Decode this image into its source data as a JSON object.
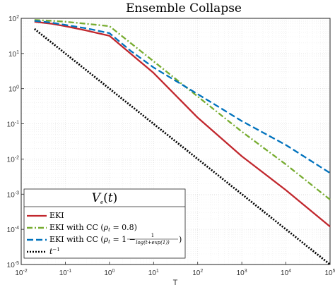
{
  "chart_data": {
    "type": "line",
    "title": "Ensemble Collapse",
    "xlabel": "T",
    "ylabel": "",
    "xscale": "log",
    "yscale": "log",
    "xlim": [
      0.01,
      100000
    ],
    "ylim": [
      1e-05,
      100
    ],
    "grid": true,
    "x_ticks": [
      {
        "base": "10",
        "exp": "-2"
      },
      {
        "base": "10",
        "exp": "-1"
      },
      {
        "base": "10",
        "exp": "0"
      },
      {
        "base": "10",
        "exp": "1"
      },
      {
        "base": "10",
        "exp": "2"
      },
      {
        "base": "10",
        "exp": "3"
      },
      {
        "base": "10",
        "exp": "4"
      },
      {
        "base": "10",
        "exp": "5"
      }
    ],
    "y_ticks": [
      {
        "base": "10",
        "exp": "2"
      },
      {
        "base": "10",
        "exp": "1"
      },
      {
        "base": "10",
        "exp": "0"
      },
      {
        "base": "10",
        "exp": "-1"
      },
      {
        "base": "10",
        "exp": "-2"
      },
      {
        "base": "10",
        "exp": "-3"
      },
      {
        "base": "10",
        "exp": "-4"
      },
      {
        "base": "10",
        "exp": "-5"
      }
    ],
    "legend": {
      "title": "V_e(t)",
      "position": "bottom-left",
      "entries": [
        {
          "label": "EKI"
        },
        {
          "label": "EKI with CC (ρ_t = 0.8)"
        },
        {
          "label": "EKI with CC (ρ_t = 1 − 1/(log(t+exp(1))))"
        },
        {
          "label": "t^-1"
        }
      ]
    },
    "series": [
      {
        "name": "EKI",
        "color": "#c1272d",
        "dash": "solid",
        "x": [
          0.02,
          0.05,
          0.1,
          0.3,
          1,
          3,
          10,
          100,
          1000,
          10000,
          100000
        ],
        "y": [
          80,
          70,
          60,
          45,
          32,
          10,
          2.8,
          0.15,
          0.012,
          0.0013,
          0.00012
        ]
      },
      {
        "name": "EKI with CC (ρ_t = 0.8)",
        "color": "#77ac30",
        "dash": "dashdot",
        "x": [
          0.02,
          0.05,
          0.1,
          0.3,
          1,
          3,
          10,
          100,
          1000,
          10000,
          100000
        ],
        "y": [
          90,
          85,
          80,
          70,
          60,
          20,
          6,
          0.6,
          0.06,
          0.007,
          0.0007
        ]
      },
      {
        "name": "EKI with CC (ρ_t = 1 − 1/(log(t+exp(1))))",
        "color": "#0072bd",
        "dash": "dashed",
        "x": [
          0.02,
          0.05,
          0.1,
          0.3,
          1,
          3,
          10,
          100,
          1000,
          10000,
          100000
        ],
        "y": [
          85,
          75,
          65,
          52,
          38,
          12,
          4,
          0.7,
          0.12,
          0.025,
          0.004
        ]
      },
      {
        "name": "t^-1",
        "color": "#000000",
        "dash": "dotted",
        "x": [
          0.02,
          100000
        ],
        "y": [
          50,
          1e-05
        ]
      }
    ]
  }
}
